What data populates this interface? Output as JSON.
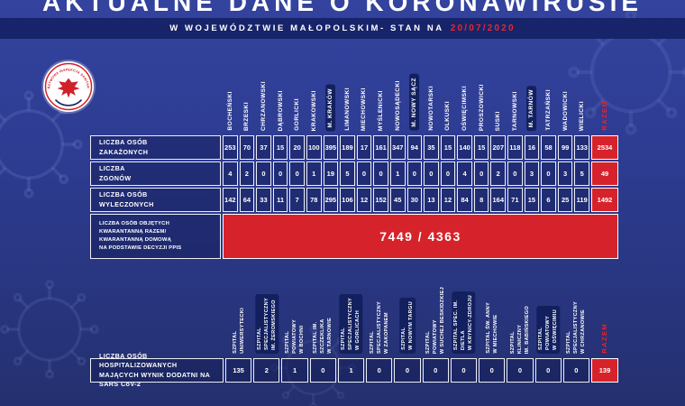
{
  "header": {
    "title": "AKTUALNE DANE O KORONAWIRUSIE",
    "subtitle_prefix": "W WOJEWÓDZTWIE MAŁOPOLSKIM- STAN NA",
    "date": "20/07/2020",
    "logo_text": "PAŃSTWOWA INSPEKCJA SANITARNA"
  },
  "colors": {
    "accent_red": "#d6232b",
    "date_red": "#e8262d",
    "background_blue": "#2d3b90",
    "bar_navy": "#17246a",
    "pill_navy": "#12205f"
  },
  "razem_label": "RAZEM",
  "table1": {
    "columns": [
      {
        "label": "BOCHEŃSKI",
        "highlight": false
      },
      {
        "label": "BRZESKI",
        "highlight": false
      },
      {
        "label": "CHRZANOWSKI",
        "highlight": false
      },
      {
        "label": "DĄBROWSKI",
        "highlight": false
      },
      {
        "label": "GORLICKI",
        "highlight": false
      },
      {
        "label": "KRAKOWSKI",
        "highlight": false
      },
      {
        "label": "M. KRAKÓW",
        "highlight": true
      },
      {
        "label": "LIMANOWSKI",
        "highlight": false
      },
      {
        "label": "MIECHOWSKI",
        "highlight": false
      },
      {
        "label": "MYŚLENICKI",
        "highlight": false
      },
      {
        "label": "NOWOSĄDECKI",
        "highlight": false
      },
      {
        "label": "M. NOWY SĄCZ",
        "highlight": true
      },
      {
        "label": "NOWOTARSKI",
        "highlight": false
      },
      {
        "label": "OLKUSKI",
        "highlight": false
      },
      {
        "label": "OŚWIĘCIMSKI",
        "highlight": false
      },
      {
        "label": "PROSZOWICKI",
        "highlight": false
      },
      {
        "label": "SUSKI",
        "highlight": false
      },
      {
        "label": "TARNOWSKI",
        "highlight": false
      },
      {
        "label": "M. TARNÓW",
        "highlight": true
      },
      {
        "label": "TATRZAŃSKI",
        "highlight": false
      },
      {
        "label": "WADOWICKI",
        "highlight": false
      },
      {
        "label": "WIELICKI",
        "highlight": false
      }
    ],
    "rows": [
      {
        "label": "LICZBA OSÓB\nZAKAŻONYCH",
        "values": [
          253,
          70,
          37,
          15,
          20,
          100,
          395,
          189,
          17,
          161,
          347,
          94,
          35,
          15,
          140,
          15,
          207,
          118,
          16,
          58,
          99,
          133
        ],
        "total": 2534
      },
      {
        "label": "LICZBA\nZGONÓW",
        "values": [
          4,
          2,
          0,
          0,
          0,
          1,
          19,
          5,
          0,
          0,
          1,
          0,
          0,
          0,
          4,
          0,
          2,
          0,
          3,
          0,
          3,
          5
        ],
        "total": 49
      },
      {
        "label": "LICZBA OSÓB\nWYLECZONYCH",
        "values": [
          142,
          64,
          33,
          11,
          7,
          78,
          295,
          106,
          12,
          152,
          45,
          30,
          13,
          12,
          84,
          8,
          164,
          71,
          15,
          6,
          25,
          119
        ],
        "total": 1492
      }
    ],
    "quarantine": {
      "label": "LICZBA OSÓB OBJĘTYCH\nKWARANTANNĄ RAZEM/\nKWARANTANNĄ DOMOWĄ\nNA PODSTAWIE DECYZJI PPIS",
      "value": "7449 / 4363"
    }
  },
  "table2": {
    "columns": [
      {
        "label": "SZPITAL\nUNIWERSYTECKI",
        "highlight": false
      },
      {
        "label": "SZPITAL\nSPECJALISTYCZNY\nIM. ŻEROMSKIEGO",
        "highlight": true
      },
      {
        "label": "SZPITAL\nPOWIATOWY\nW BOCHNI",
        "highlight": false
      },
      {
        "label": "SZPITAL IM.\nSZCZEKLIKA\nW TARNOWIE",
        "highlight": false
      },
      {
        "label": "SZPITAL\nSPECJALISTYCZNY\nW GORLICACH",
        "highlight": true
      },
      {
        "label": "SZPITAL\nSPECJALISTYCZNY\nW ZAKOPANEM",
        "highlight": false
      },
      {
        "label": "SZPITAL\nW NOWYM TARGU",
        "highlight": true
      },
      {
        "label": "SZPITAL\nPOWIATOWY\nW SUCHEJ BESKIDZKIEJ",
        "highlight": false
      },
      {
        "label": "SZPITAL SPEC. IM.\nDIETLA\nW KRYNICY-ZDROJU",
        "highlight": true
      },
      {
        "label": "SZPITAL ŚW. ANNY\nW MIECHOWIE",
        "highlight": false
      },
      {
        "label": "SZPITAL\nKLINICZNY\nIM. BABIŃSKIEGO",
        "highlight": false
      },
      {
        "label": "SZPITAL\nPOWIATOWY\nW OŚWIĘCIMIU",
        "highlight": true
      },
      {
        "label": "SZPITAL\nSPECJALISTYCZNY\nW CHRZANOWIE",
        "highlight": false
      }
    ],
    "row": {
      "label": "LICZBA OSÓB HOSPITALIZOWANYCH\nMAJĄCYCH WYNIK DODATNI NA SARS CoV-2",
      "values": [
        135,
        2,
        1,
        0,
        1,
        0,
        0,
        0,
        0,
        0,
        0,
        0,
        0
      ],
      "total": 139
    }
  },
  "chart_data": [
    {
      "type": "table",
      "title": "AKTUALNE DANE O KORONAWIRUSIE",
      "subtitle": "W WOJEWÓDZTWIE MAŁOPOLSKIM- STAN NA 20/07/2020",
      "categories": [
        "BOCHEŃSKI",
        "BRZESKI",
        "CHRZANOWSKI",
        "DĄBROWSKI",
        "GORLICKI",
        "KRAKOWSKI",
        "M. KRAKÓW",
        "LIMANOWSKI",
        "MIECHOWSKI",
        "MYŚLENICKI",
        "NOWOSĄDECKI",
        "M. NOWY SĄCZ",
        "NOWOTARSKI",
        "OLKUSKI",
        "OŚWIĘCIMSKI",
        "PROSZOWICKI",
        "SUSKI",
        "TARNOWSKI",
        "M. TARNÓW",
        "TATRZAŃSKI",
        "WADOWICKI",
        "WIELICKI"
      ],
      "series": [
        {
          "name": "LICZBA OSÓB ZAKAŻONYCH",
          "values": [
            253,
            70,
            37,
            15,
            20,
            100,
            395,
            189,
            17,
            161,
            347,
            94,
            35,
            15,
            140,
            15,
            207,
            118,
            16,
            58,
            99,
            133
          ],
          "total": 2534
        },
        {
          "name": "LICZBA ZGONÓW",
          "values": [
            4,
            2,
            0,
            0,
            0,
            1,
            19,
            5,
            0,
            0,
            1,
            0,
            0,
            0,
            4,
            0,
            2,
            0,
            3,
            0,
            3,
            5
          ],
          "total": 49
        },
        {
          "name": "LICZBA OSÓB WYLECZONYCH",
          "values": [
            142,
            64,
            33,
            11,
            7,
            78,
            295,
            106,
            12,
            152,
            45,
            30,
            13,
            12,
            84,
            8,
            164,
            71,
            15,
            6,
            25,
            119
          ],
          "total": 1492
        }
      ],
      "annotations": [
        "LICZBA OSÓB OBJĘTYCH KWARANTANNĄ RAZEM/ KWARANTANNĄ DOMOWĄ NA PODSTAWIE DECYZJI PPIS: 7449 / 4363"
      ]
    },
    {
      "type": "table",
      "title": "LICZBA OSÓB HOSPITALIZOWANYCH MAJĄCYCH WYNIK DODATNI NA SARS CoV-2",
      "categories": [
        "SZPITAL UNIWERSYTECKI",
        "SZPITAL SPECJALISTYCZNY IM. ŻEROMSKIEGO",
        "SZPITAL POWIATOWY W BOCHNI",
        "SZPITAL IM. SZCZEKLIKA W TARNOWIE",
        "SZPITAL SPECJALISTYCZNY W GORLICACH",
        "SZPITAL SPECJALISTYCZNY W ZAKOPANEM",
        "SZPITAL W NOWYM TARGU",
        "SZPITAL POWIATOWY W SUCHEJ BESKIDZKIEJ",
        "SZPITAL SPEC. IM. DIETLA W KRYNICY-ZDROJU",
        "SZPITAL ŚW. ANNY W MIECHOWIE",
        "SZPITAL KLINICZNY IM. BABIŃSKIEGO",
        "SZPITAL POWIATOWY W OŚWIĘCIMIU",
        "SZPITAL SPECJALISTYCZNY W CHRZANOWIE"
      ],
      "series": [
        {
          "name": "LICZBA OSÓB HOSPITALIZOWANYCH MAJĄCYCH WYNIK DODATNI NA SARS CoV-2",
          "values": [
            135,
            2,
            1,
            0,
            1,
            0,
            0,
            0,
            0,
            0,
            0,
            0,
            0
          ],
          "total": 139
        }
      ]
    }
  ]
}
